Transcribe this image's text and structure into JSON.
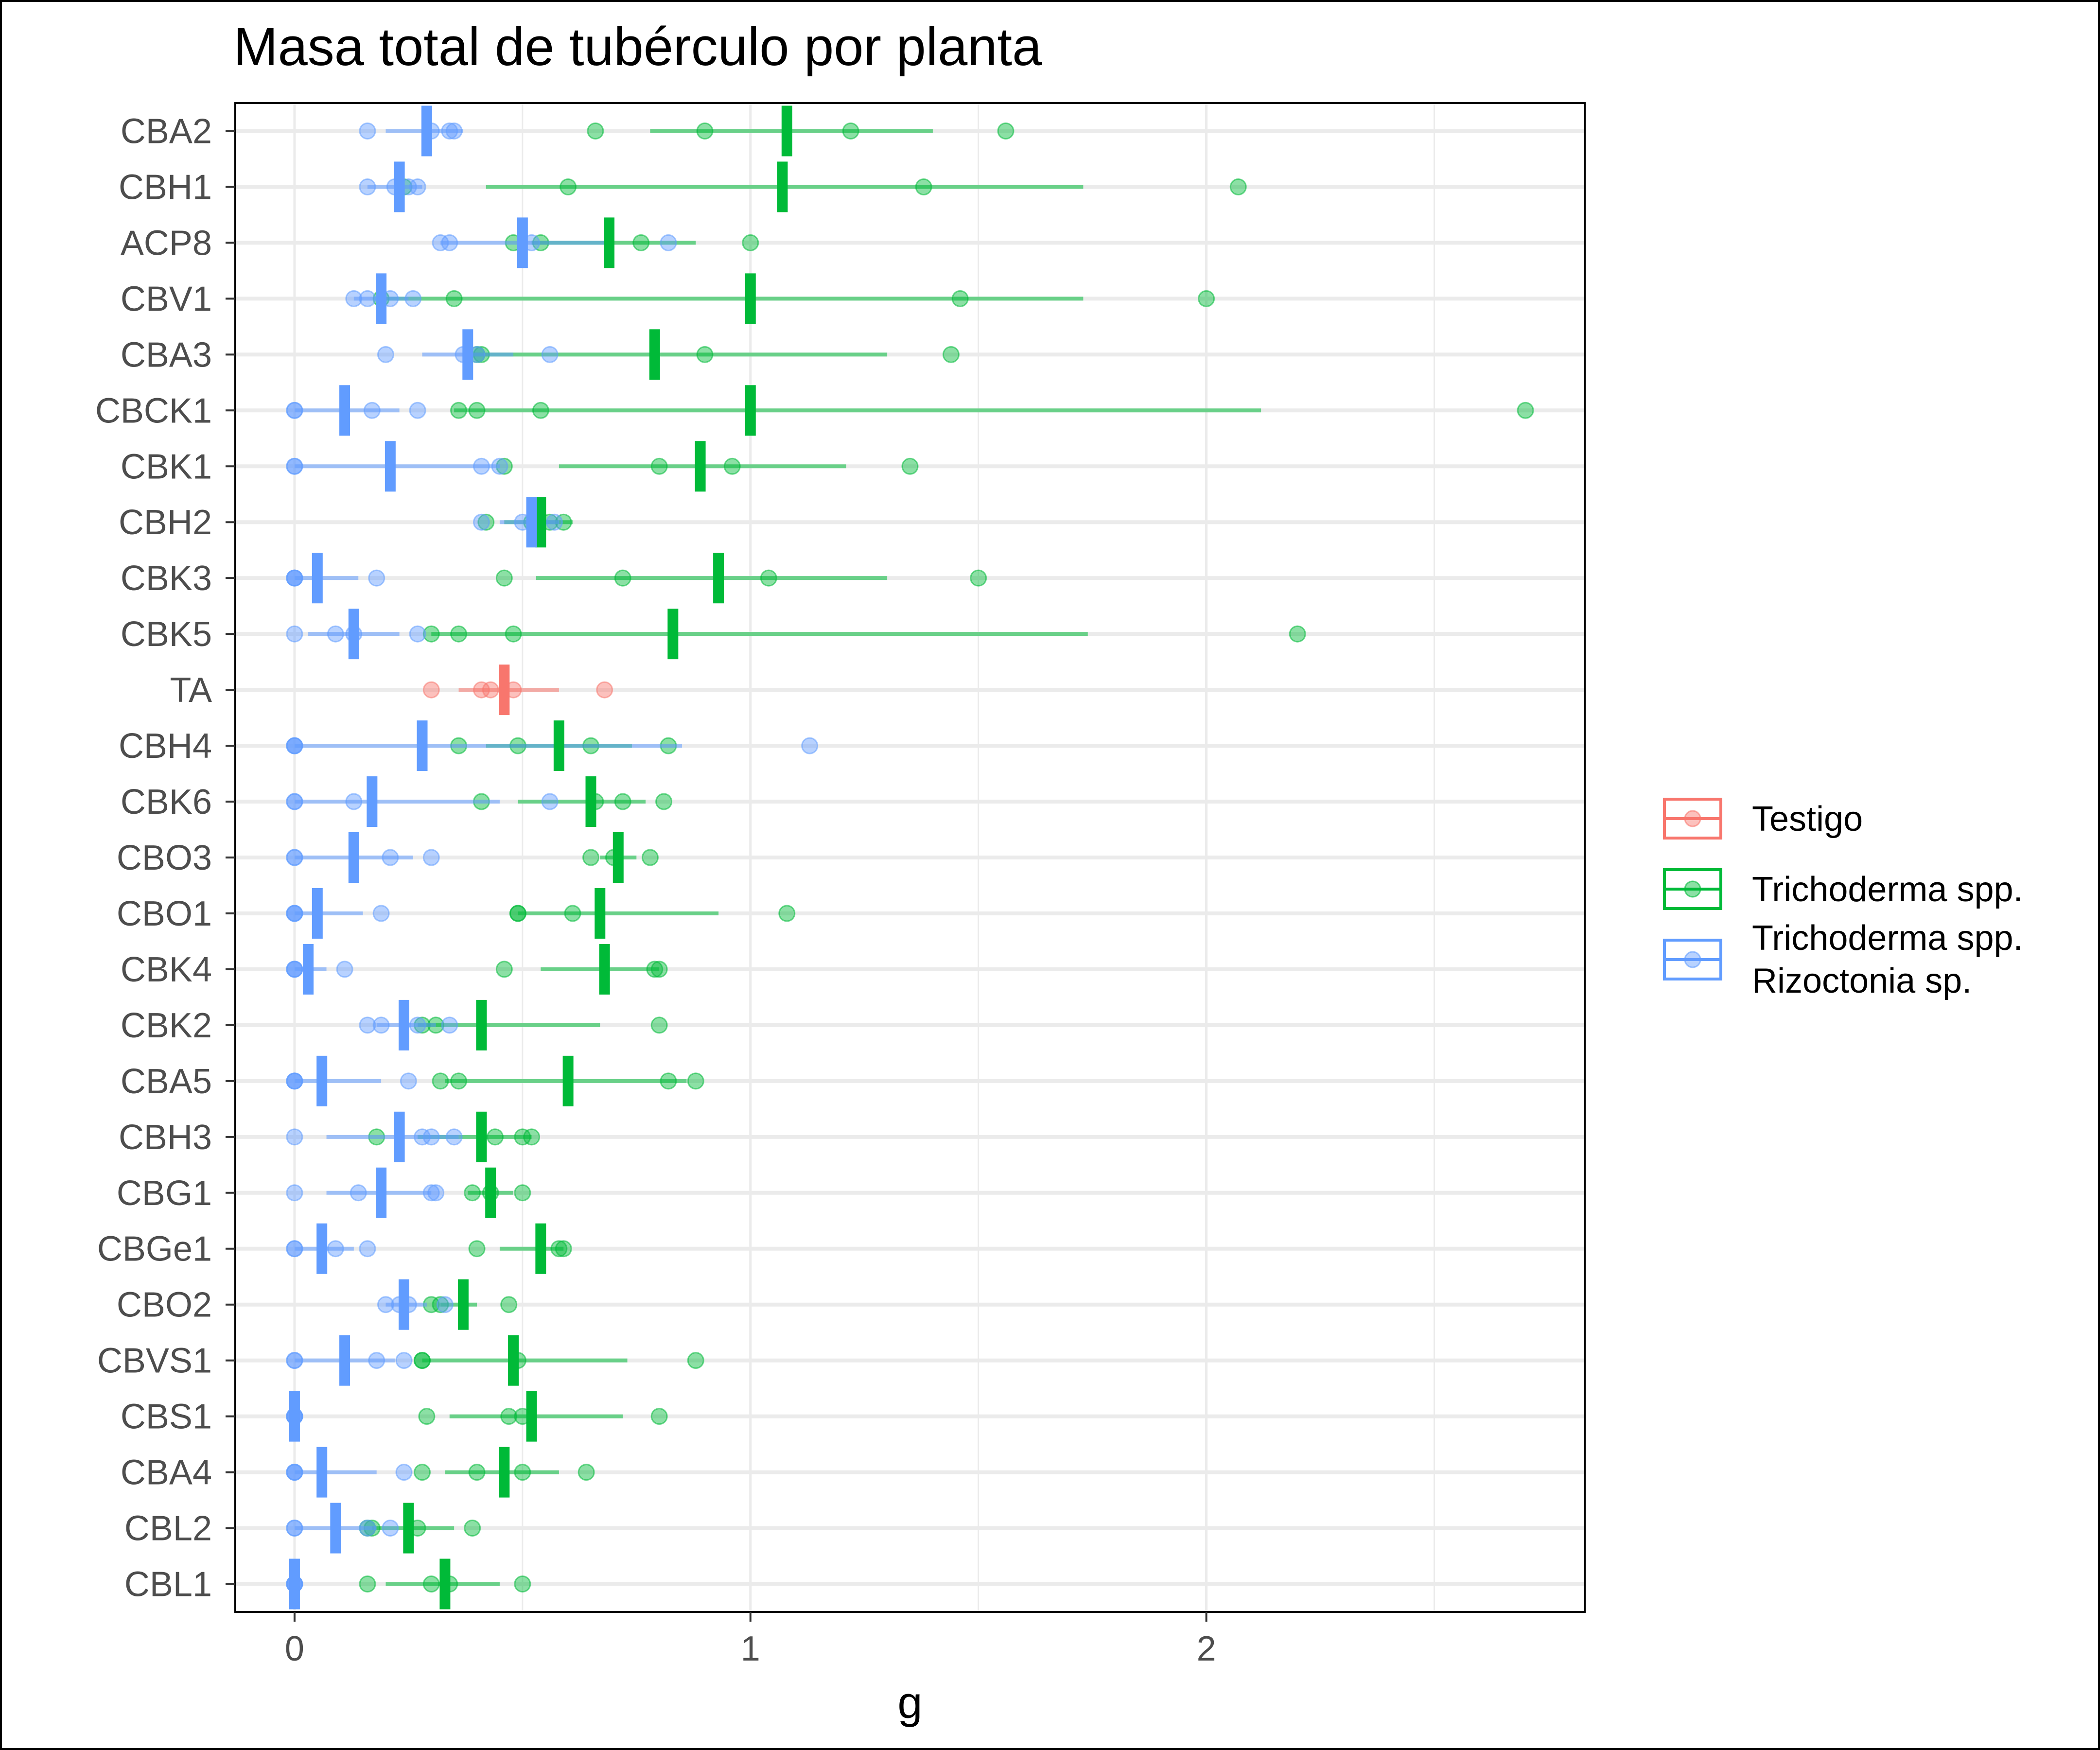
{
  "chart_data": {
    "type": "scatter",
    "title": "Masa total de tubérculo por planta",
    "xlabel": "g",
    "ylabel": "",
    "xlim": [
      -0.13,
      2.83
    ],
    "xticks": [
      0,
      1,
      2
    ],
    "minor_gridlines": [
      0.5,
      1.5,
      2.5
    ],
    "grid": true,
    "legend_position": "right",
    "colors": {
      "Testigo": "#F8766D",
      "Trichoderma spp.": "#00BA38",
      "Trichoderma spp.\nRizoctonia sp.": "#619CFF"
    },
    "legend": [
      {
        "key": "Testigo",
        "lines": [
          "Testigo"
        ]
      },
      {
        "key": "Trichoderma spp.",
        "lines": [
          "Trichoderma spp."
        ]
      },
      {
        "key": "Trichoderma spp.\nRizoctonia sp.",
        "lines": [
          "Trichoderma spp.",
          "Rizoctonia sp."
        ]
      }
    ],
    "categories": [
      "CBA2",
      "CBH1",
      "ACP8",
      "CBV1",
      "CBA3",
      "CBCK1",
      "CBK1",
      "CBH2",
      "CBK3",
      "CBK5",
      "TA",
      "CBH4",
      "CBK6",
      "CBO3",
      "CBO1",
      "CBK4",
      "CBK2",
      "CBA5",
      "CBH3",
      "CBG1",
      "CBGe1",
      "CBO2",
      "CBVS1",
      "CBS1",
      "CBA4",
      "CBL2",
      "CBL1"
    ],
    "rows": [
      {
        "cat": "CBA2",
        "groups": [
          {
            "series": "Trichoderma spp.",
            "mean": 1.08,
            "lo": 0.78,
            "hi": 1.4,
            "points": [
              0.66,
              0.9,
              1.22,
              1.56
            ]
          },
          {
            "series": "Trichoderma spp.\nRizoctonia sp.",
            "mean": 0.29,
            "lo": 0.2,
            "hi": 0.37,
            "points": [
              0.16,
              0.3,
              0.34,
              0.35
            ]
          }
        ]
      },
      {
        "cat": "CBH1",
        "groups": [
          {
            "series": "Trichoderma spp.",
            "mean": 1.07,
            "lo": 0.42,
            "hi": 1.73,
            "points": [
              0.24,
              0.6,
              1.38,
              2.07
            ]
          },
          {
            "series": "Trichoderma spp.\nRizoctonia sp.",
            "mean": 0.23,
            "lo": 0.16,
            "hi": 0.28,
            "points": [
              0.16,
              0.22,
              0.25,
              0.27
            ]
          }
        ]
      },
      {
        "cat": "ACP8",
        "groups": [
          {
            "series": "Trichoderma spp.",
            "mean": 0.69,
            "lo": 0.52,
            "hi": 0.88,
            "points": [
              0.48,
              0.54,
              0.76,
              1.0
            ]
          },
          {
            "series": "Trichoderma spp.\nRizoctonia sp.",
            "mean": 0.5,
            "lo": 0.32,
            "hi": 0.7,
            "points": [
              0.32,
              0.34,
              0.52,
              0.82
            ]
          }
        ]
      },
      {
        "cat": "CBV1",
        "groups": [
          {
            "series": "Trichoderma spp.",
            "mean": 1.0,
            "lo": 0.19,
            "hi": 1.73,
            "points": [
              0.19,
              0.35,
              1.46,
              2.0
            ]
          },
          {
            "series": "Trichoderma spp.\nRizoctonia sp.",
            "mean": 0.19,
            "lo": 0.13,
            "hi": 0.25,
            "points": [
              0.13,
              0.16,
              0.21,
              0.26
            ]
          }
        ]
      },
      {
        "cat": "CBA3",
        "groups": [
          {
            "series": "Trichoderma spp.",
            "mean": 0.79,
            "lo": 0.38,
            "hi": 1.3,
            "points": [
              0.4,
              0.41,
              0.9,
              1.44
            ]
          },
          {
            "series": "Trichoderma spp.\nRizoctonia sp.",
            "mean": 0.38,
            "lo": 0.28,
            "hi": 0.48,
            "points": [
              0.2,
              0.37,
              0.4,
              0.56
            ]
          }
        ]
      },
      {
        "cat": "CBCK1",
        "groups": [
          {
            "series": "Trichoderma spp.",
            "mean": 1.0,
            "lo": 0.35,
            "hi": 2.12,
            "points": [
              0.36,
              0.4,
              0.54,
              2.7
            ]
          },
          {
            "series": "Trichoderma spp.\nRizoctonia sp.",
            "mean": 0.11,
            "lo": 0.0,
            "hi": 0.23,
            "points": [
              0.0,
              0.0,
              0.17,
              0.27
            ]
          }
        ]
      },
      {
        "cat": "CBK1",
        "groups": [
          {
            "series": "Trichoderma spp.",
            "mean": 0.89,
            "lo": 0.58,
            "hi": 1.21,
            "points": [
              0.46,
              0.8,
              0.96,
              1.35
            ]
          },
          {
            "series": "Trichoderma spp.\nRizoctonia sp.",
            "mean": 0.21,
            "lo": 0.0,
            "hi": 0.45,
            "points": [
              0.0,
              0.0,
              0.41,
              0.45
            ]
          }
        ]
      },
      {
        "cat": "CBH2",
        "groups": [
          {
            "series": "Trichoderma spp.",
            "mean": 0.54,
            "lo": 0.46,
            "hi": 0.61,
            "points": [
              0.42,
              0.52,
              0.56,
              0.59
            ]
          },
          {
            "series": "Trichoderma spp.\nRizoctonia sp.",
            "mean": 0.52,
            "lo": 0.45,
            "hi": 0.58,
            "points": [
              0.41,
              0.5,
              0.53,
              0.57
            ]
          }
        ]
      },
      {
        "cat": "CBK3",
        "groups": [
          {
            "series": "Trichoderma spp.",
            "mean": 0.93,
            "lo": 0.53,
            "hi": 1.3,
            "points": [
              0.46,
              0.72,
              1.04,
              1.5
            ]
          },
          {
            "series": "Trichoderma spp.\nRizoctonia sp.",
            "mean": 0.05,
            "lo": 0.0,
            "hi": 0.14,
            "points": [
              0.0,
              0.0,
              0.0,
              0.18
            ]
          }
        ]
      },
      {
        "cat": "CBK5",
        "groups": [
          {
            "series": "Trichoderma spp.",
            "mean": 0.83,
            "lo": 0.3,
            "hi": 1.74,
            "points": [
              0.3,
              0.36,
              0.48,
              2.2
            ]
          },
          {
            "series": "Trichoderma spp.\nRizoctonia sp.",
            "mean": 0.13,
            "lo": 0.03,
            "hi": 0.23,
            "points": [
              0.0,
              0.09,
              0.13,
              0.27
            ]
          }
        ]
      },
      {
        "cat": "TA",
        "groups": [
          {
            "series": "Testigo",
            "mean": 0.46,
            "lo": 0.36,
            "hi": 0.58,
            "points": [
              0.3,
              0.41,
              0.43,
              0.48,
              0.68
            ]
          }
        ]
      },
      {
        "cat": "CBH4",
        "groups": [
          {
            "series": "Trichoderma spp.",
            "mean": 0.58,
            "lo": 0.42,
            "hi": 0.74,
            "points": [
              0.36,
              0.49,
              0.65,
              0.82
            ]
          },
          {
            "series": "Trichoderma spp.\nRizoctonia sp.",
            "mean": 0.28,
            "lo": 0.0,
            "hi": 0.85,
            "points": [
              0.0,
              0.0,
              0.0,
              1.13
            ]
          }
        ]
      },
      {
        "cat": "CBK6",
        "groups": [
          {
            "series": "Trichoderma spp.",
            "mean": 0.65,
            "lo": 0.49,
            "hi": 0.77,
            "points": [
              0.41,
              0.66,
              0.72,
              0.81
            ]
          },
          {
            "series": "Trichoderma spp.\nRizoctonia sp.",
            "mean": 0.17,
            "lo": 0.0,
            "hi": 0.45,
            "points": [
              0.0,
              0.0,
              0.13,
              0.56
            ]
          }
        ]
      },
      {
        "cat": "CBO3",
        "groups": [
          {
            "series": "Trichoderma spp.",
            "mean": 0.71,
            "lo": 0.67,
            "hi": 0.75,
            "points": [
              0.65,
              0.7,
              0.78
            ]
          },
          {
            "series": "Trichoderma spp.\nRizoctonia sp.",
            "mean": 0.13,
            "lo": 0.0,
            "hi": 0.26,
            "points": [
              0.0,
              0.0,
              0.21,
              0.3
            ]
          }
        ]
      },
      {
        "cat": "CBO1",
        "groups": [
          {
            "series": "Trichoderma spp.",
            "mean": 0.67,
            "lo": 0.49,
            "hi": 0.93,
            "points": [
              0.49,
              0.49,
              0.61,
              1.08
            ]
          },
          {
            "series": "Trichoderma spp.\nRizoctonia sp.",
            "mean": 0.05,
            "lo": 0.0,
            "hi": 0.15,
            "points": [
              0.0,
              0.0,
              0.0,
              0.19
            ]
          }
        ]
      },
      {
        "cat": "CBK4",
        "groups": [
          {
            "series": "Trichoderma spp.",
            "mean": 0.68,
            "lo": 0.54,
            "hi": 0.8,
            "points": [
              0.46,
              0.79,
              0.8
            ]
          },
          {
            "series": "Trichoderma spp.\nRizoctonia sp.",
            "mean": 0.03,
            "lo": 0.0,
            "hi": 0.07,
            "points": [
              0.0,
              0.0,
              0.0,
              0.11
            ]
          }
        ]
      },
      {
        "cat": "CBK2",
        "groups": [
          {
            "series": "Trichoderma spp.",
            "mean": 0.41,
            "lo": 0.27,
            "hi": 0.67,
            "points": [
              0.28,
              0.31,
              0.8
            ]
          },
          {
            "series": "Trichoderma spp.\nRizoctonia sp.",
            "mean": 0.24,
            "lo": 0.18,
            "hi": 0.31,
            "points": [
              0.16,
              0.19,
              0.27,
              0.34
            ]
          }
        ]
      },
      {
        "cat": "CBA5",
        "groups": [
          {
            "series": "Trichoderma spp.",
            "mean": 0.6,
            "lo": 0.33,
            "hi": 0.86,
            "points": [
              0.32,
              0.36,
              0.82,
              0.88
            ]
          },
          {
            "series": "Trichoderma spp.\nRizoctonia sp.",
            "mean": 0.06,
            "lo": 0.0,
            "hi": 0.19,
            "points": [
              0.0,
              0.0,
              0.0,
              0.25
            ]
          }
        ]
      },
      {
        "cat": "CBH3",
        "groups": [
          {
            "series": "Trichoderma spp.",
            "mean": 0.41,
            "lo": 0.27,
            "hi": 0.52,
            "points": [
              0.18,
              0.44,
              0.5,
              0.52
            ]
          },
          {
            "series": "Trichoderma spp.\nRizoctonia sp.",
            "mean": 0.23,
            "lo": 0.07,
            "hi": 0.36,
            "points": [
              0.0,
              0.28,
              0.3,
              0.35
            ]
          }
        ]
      },
      {
        "cat": "CBG1",
        "groups": [
          {
            "series": "Trichoderma spp.",
            "mean": 0.43,
            "lo": 0.38,
            "hi": 0.48,
            "points": [
              0.39,
              0.43,
              0.5
            ]
          },
          {
            "series": "Trichoderma spp.\nRizoctonia sp.",
            "mean": 0.19,
            "lo": 0.07,
            "hi": 0.3,
            "points": [
              0.0,
              0.14,
              0.3,
              0.31
            ]
          }
        ]
      },
      {
        "cat": "CBGe1",
        "groups": [
          {
            "series": "Trichoderma spp.",
            "mean": 0.54,
            "lo": 0.45,
            "hi": 0.59,
            "points": [
              0.4,
              0.58,
              0.59
            ]
          },
          {
            "series": "Trichoderma spp.\nRizoctonia sp.",
            "mean": 0.06,
            "lo": 0.0,
            "hi": 0.13,
            "points": [
              0.0,
              0.0,
              0.09,
              0.16
            ]
          }
        ]
      },
      {
        "cat": "CBO2",
        "groups": [
          {
            "series": "Trichoderma spp.",
            "mean": 0.37,
            "lo": 0.32,
            "hi": 0.4,
            "points": [
              0.3,
              0.32,
              0.47
            ]
          },
          {
            "series": "Trichoderma spp.\nRizoctonia sp.",
            "mean": 0.24,
            "lo": 0.2,
            "hi": 0.29,
            "points": [
              0.2,
              0.23,
              0.25,
              0.33
            ]
          }
        ]
      },
      {
        "cat": "CBVS1",
        "groups": [
          {
            "series": "Trichoderma spp.",
            "mean": 0.48,
            "lo": 0.28,
            "hi": 0.73,
            "points": [
              0.28,
              0.28,
              0.49,
              0.88
            ]
          },
          {
            "series": "Trichoderma spp.\nRizoctonia sp.",
            "mean": 0.11,
            "lo": 0.0,
            "hi": 0.22,
            "points": [
              0.0,
              0.0,
              0.18,
              0.24
            ]
          }
        ]
      },
      {
        "cat": "CBS1",
        "groups": [
          {
            "series": "Trichoderma spp.",
            "mean": 0.52,
            "lo": 0.34,
            "hi": 0.72,
            "points": [
              0.29,
              0.47,
              0.5,
              0.8
            ]
          },
          {
            "series": "Trichoderma spp.\nRizoctonia sp.",
            "mean": 0.0,
            "lo": 0.0,
            "hi": 0.0,
            "points": [
              0.0,
              0.0,
              0.0,
              0.0
            ]
          }
        ]
      },
      {
        "cat": "CBA4",
        "groups": [
          {
            "series": "Trichoderma spp.",
            "mean": 0.46,
            "lo": 0.33,
            "hi": 0.58,
            "points": [
              0.28,
              0.4,
              0.5,
              0.64
            ]
          },
          {
            "series": "Trichoderma spp.\nRizoctonia sp.",
            "mean": 0.06,
            "lo": 0.0,
            "hi": 0.18,
            "points": [
              0.0,
              0.0,
              0.0,
              0.24
            ]
          }
        ]
      },
      {
        "cat": "CBL2",
        "groups": [
          {
            "series": "Trichoderma spp.",
            "mean": 0.25,
            "lo": 0.17,
            "hi": 0.35,
            "points": [
              0.16,
              0.17,
              0.27,
              0.39
            ]
          },
          {
            "series": "Trichoderma spp.\nRizoctonia sp.",
            "mean": 0.09,
            "lo": 0.0,
            "hi": 0.18,
            "points": [
              0.0,
              0.0,
              0.16,
              0.21
            ]
          }
        ]
      },
      {
        "cat": "CBL1",
        "groups": [
          {
            "series": "Trichoderma spp.",
            "mean": 0.33,
            "lo": 0.2,
            "hi": 0.45,
            "points": [
              0.16,
              0.3,
              0.34,
              0.5
            ]
          },
          {
            "series": "Trichoderma spp.\nRizoctonia sp.",
            "mean": 0.0,
            "lo": 0.0,
            "hi": 0.0,
            "points": [
              0.0,
              0.0,
              0.0,
              0.0
            ]
          }
        ]
      }
    ]
  }
}
